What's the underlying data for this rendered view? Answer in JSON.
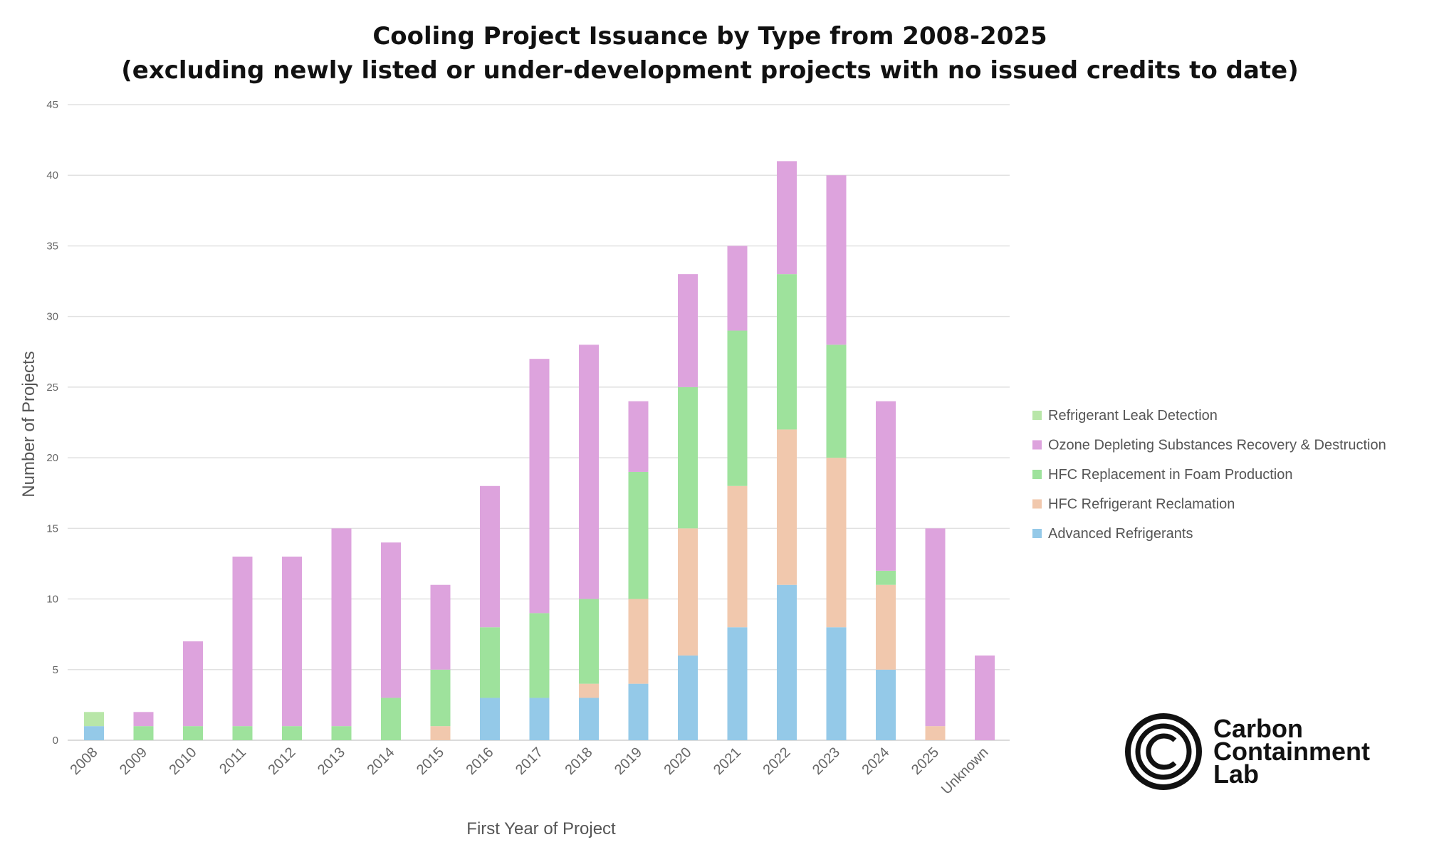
{
  "chart_data": {
    "type": "bar",
    "stacked": true,
    "title": "Cooling Project Issuance by Type from 2008-2025",
    "subtitle": "(excluding newly listed or under-development projects with no issued credits to date)",
    "xlabel": "First Year of Project",
    "ylabel": "Number of Projects",
    "ylim": [
      0,
      45
    ],
    "yticks": [
      0,
      5,
      10,
      15,
      20,
      25,
      30,
      35,
      40,
      45
    ],
    "grid": true,
    "legend_position": "right",
    "categories": [
      "2008",
      "2009",
      "2010",
      "2011",
      "2012",
      "2013",
      "2014",
      "2015",
      "2016",
      "2017",
      "2018",
      "2019",
      "2020",
      "2021",
      "2022",
      "2023",
      "2024",
      "2025",
      "Unknown"
    ],
    "series": [
      {
        "name": "Advanced Refrigerants",
        "color": "#94c9e8",
        "values": [
          1,
          0,
          0,
          0,
          0,
          0,
          0,
          0,
          3,
          3,
          3,
          4,
          6,
          8,
          11,
          8,
          5,
          0,
          0
        ]
      },
      {
        "name": "HFC Refrigerant Reclamation",
        "color": "#f1c8ad",
        "values": [
          0,
          0,
          0,
          0,
          0,
          0,
          0,
          1,
          0,
          0,
          1,
          6,
          9,
          10,
          11,
          12,
          6,
          1,
          0
        ]
      },
      {
        "name": "HFC Replacement in Foam Production",
        "color": "#9ee29c",
        "values": [
          0,
          1,
          1,
          1,
          1,
          1,
          3,
          4,
          5,
          6,
          6,
          9,
          10,
          11,
          11,
          8,
          1,
          0,
          0
        ]
      },
      {
        "name": "Ozone Depleting Substances Recovery & Destruction",
        "color": "#dda3dd",
        "values": [
          0,
          1,
          6,
          12,
          12,
          14,
          11,
          6,
          10,
          18,
          18,
          5,
          8,
          6,
          8,
          12,
          12,
          14,
          6
        ]
      },
      {
        "name": "Refrigerant Leak Detection",
        "color": "#b8e6a8",
        "values": [
          1,
          0,
          0,
          0,
          0,
          0,
          0,
          0,
          0,
          0,
          0,
          0,
          0,
          0,
          0,
          0,
          0,
          0,
          0
        ]
      }
    ],
    "legend_order": [
      "Refrigerant Leak Detection",
      "Ozone Depleting Substances Recovery & Destruction",
      "HFC Replacement in Foam Production",
      "HFC Refrigerant Reclamation",
      "Advanced Refrigerants"
    ]
  },
  "logo": {
    "line1": "Carbon",
    "line2": "Containment",
    "line3": "Lab",
    "icon": "copyright-c-icon"
  }
}
